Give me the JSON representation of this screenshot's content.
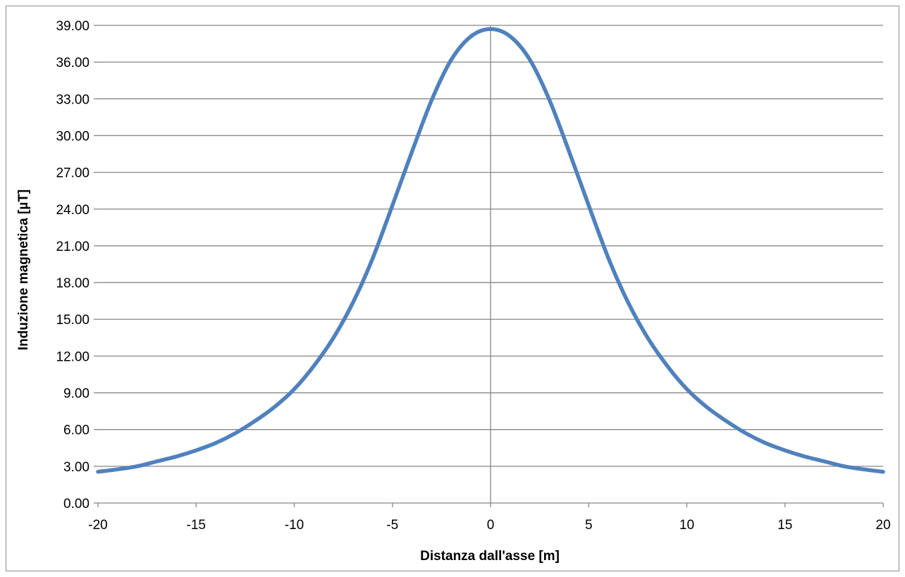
{
  "chart_data": {
    "type": "line",
    "title": "",
    "xlabel": "Distanza dall'asse [m]",
    "ylabel": "Induzione magnetica [µT]",
    "xlim": [
      -20,
      20
    ],
    "ylim": [
      0,
      39
    ],
    "x_ticks": [
      -20,
      -15,
      -10,
      -5,
      0,
      5,
      10,
      15,
      20
    ],
    "x_tick_labels": [
      "-20",
      "-15",
      "-10",
      "-5",
      "0",
      "5",
      "10",
      "15",
      "20"
    ],
    "y_ticks": [
      0,
      3,
      6,
      9,
      12,
      15,
      18,
      21,
      24,
      27,
      30,
      33,
      36,
      39
    ],
    "y_tick_labels": [
      "0.00",
      "3.00",
      "6.00",
      "9.00",
      "12.00",
      "15.00",
      "18.00",
      "21.00",
      "24.00",
      "27.00",
      "30.00",
      "33.00",
      "36.00",
      "39.00"
    ],
    "grid": "horizontal",
    "legend": "none",
    "series": [
      {
        "color": "#4f81bd",
        "x": [
          -20,
          -19,
          -18,
          -17,
          -16,
          -15,
          -14,
          -13,
          -12,
          -11,
          -10,
          -9,
          -8,
          -7,
          -6,
          -5,
          -4,
          -3,
          -2,
          -1,
          0,
          1,
          2,
          3,
          4,
          5,
          6,
          7,
          8,
          9,
          10,
          11,
          12,
          13,
          14,
          15,
          16,
          17,
          18,
          19,
          20
        ],
        "values": [
          2.55,
          2.75,
          3.0,
          3.4,
          3.8,
          4.3,
          4.9,
          5.7,
          6.7,
          7.85,
          9.3,
          11.2,
          13.5,
          16.4,
          20.0,
          24.3,
          28.7,
          32.9,
          36.2,
          38.1,
          38.7,
          38.1,
          36.2,
          32.9,
          28.7,
          24.3,
          20.0,
          16.4,
          13.5,
          11.2,
          9.3,
          7.85,
          6.7,
          5.7,
          4.9,
          4.3,
          3.8,
          3.4,
          3.0,
          2.75,
          2.55
        ]
      }
    ],
    "colors": {
      "gridline": "#868686",
      "axis": "#868686",
      "frame": "#8c8c8c",
      "line": "#4f81bd"
    }
  }
}
